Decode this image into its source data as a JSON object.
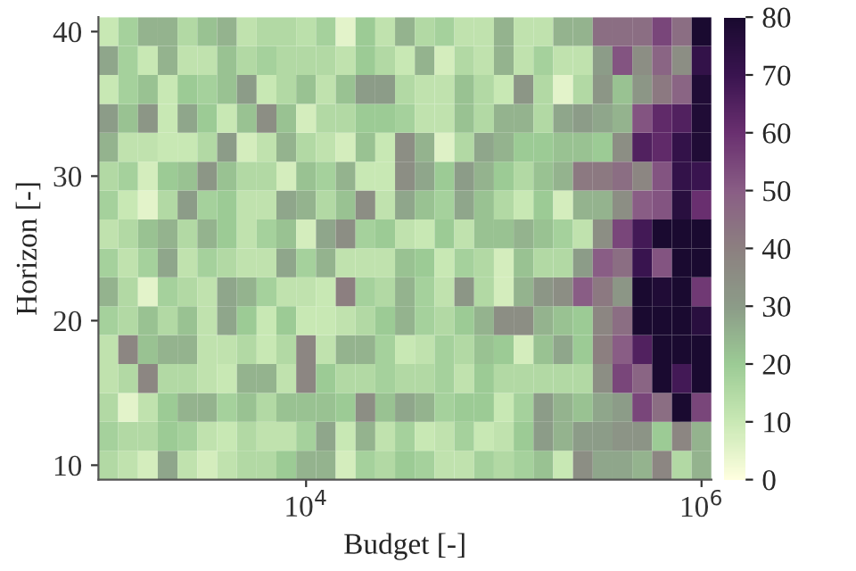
{
  "chart_data": {
    "type": "heatmap",
    "xlabel": "Budget [-]",
    "ylabel": "Horizon [-]",
    "log": "x",
    "x": [
      1000,
      1259,
      1585,
      1995,
      2512,
      3162,
      3981,
      5012,
      6310,
      7943,
      10000,
      12589,
      15849,
      19953,
      25119,
      31623,
      39811,
      50119,
      63096,
      79433,
      100000,
      125893,
      158489,
      199526,
      251189,
      316228,
      398107,
      501187,
      630957,
      794328,
      1000000
    ],
    "y": [
      40,
      38,
      36,
      34,
      32,
      30,
      28,
      26,
      24,
      22,
      20,
      18,
      16,
      14,
      12,
      10
    ],
    "xlim": [
      891,
      1122018
    ],
    "xticks": [
      {
        "value": 10000,
        "label": "10$^{4}$"
      },
      {
        "value": 1000000,
        "label": "10$^{6}$"
      }
    ],
    "ylim": [
      9,
      41
    ],
    "yticks": [
      10,
      20,
      30,
      40
    ],
    "clim": [
      0,
      80
    ],
    "cticks": [
      0,
      10,
      20,
      30,
      40,
      50,
      60,
      70,
      80
    ],
    "cells": [
      [
        10,
        18,
        25,
        25,
        15,
        22,
        25,
        12,
        15,
        15,
        13,
        18,
        5,
        20,
        12,
        25,
        15,
        18,
        12,
        12,
        25,
        12,
        12,
        25,
        25,
        45,
        45,
        45,
        55,
        45,
        80
      ],
      [
        28,
        18,
        10,
        25,
        12,
        12,
        22,
        15,
        18,
        15,
        15,
        15,
        12,
        20,
        15,
        10,
        25,
        8,
        15,
        12,
        25,
        12,
        18,
        12,
        12,
        30,
        52,
        35,
        48,
        35,
        72
      ],
      [
        10,
        18,
        22,
        10,
        20,
        18,
        22,
        30,
        10,
        15,
        22,
        12,
        22,
        30,
        30,
        15,
        12,
        12,
        22,
        15,
        10,
        32,
        15,
        5,
        15,
        32,
        22,
        32,
        42,
        48,
        78
      ],
      [
        30,
        22,
        32,
        10,
        28,
        20,
        10,
        22,
        35,
        22,
        8,
        15,
        15,
        20,
        20,
        18,
        12,
        12,
        22,
        15,
        25,
        25,
        15,
        28,
        30,
        28,
        25,
        52,
        62,
        65,
        78
      ],
      [
        25,
        12,
        12,
        10,
        10,
        15,
        30,
        8,
        12,
        25,
        15,
        12,
        8,
        22,
        10,
        35,
        25,
        6,
        15,
        28,
        25,
        20,
        20,
        22,
        22,
        20,
        35,
        65,
        62,
        72,
        78
      ],
      [
        15,
        18,
        8,
        20,
        22,
        32,
        22,
        15,
        15,
        8,
        22,
        18,
        25,
        10,
        10,
        35,
        28,
        20,
        30,
        25,
        20,
        15,
        22,
        25,
        42,
        42,
        45,
        38,
        52,
        72,
        70
      ],
      [
        18,
        10,
        5,
        15,
        30,
        18,
        20,
        12,
        12,
        28,
        25,
        15,
        22,
        35,
        12,
        28,
        22,
        18,
        28,
        22,
        15,
        10,
        20,
        8,
        25,
        25,
        35,
        50,
        52,
        75,
        60
      ],
      [
        12,
        15,
        22,
        25,
        15,
        25,
        20,
        12,
        18,
        22,
        8,
        28,
        35,
        18,
        20,
        12,
        10,
        20,
        12,
        22,
        22,
        25,
        22,
        18,
        12,
        35,
        55,
        68,
        80,
        80,
        80
      ],
      [
        18,
        12,
        18,
        28,
        12,
        18,
        15,
        12,
        12,
        28,
        18,
        25,
        12,
        12,
        12,
        22,
        20,
        10,
        18,
        15,
        8,
        22,
        15,
        15,
        30,
        50,
        45,
        70,
        52,
        80,
        80
      ],
      [
        25,
        15,
        5,
        18,
        15,
        12,
        28,
        25,
        18,
        12,
        12,
        10,
        40,
        18,
        15,
        25,
        18,
        12,
        32,
        15,
        8,
        25,
        32,
        35,
        50,
        42,
        32,
        80,
        78,
        80,
        58
      ],
      [
        18,
        15,
        22,
        15,
        22,
        12,
        28,
        20,
        10,
        20,
        10,
        10,
        12,
        15,
        20,
        25,
        18,
        15,
        20,
        25,
        35,
        35,
        25,
        22,
        20,
        38,
        45,
        80,
        80,
        80,
        75
      ],
      [
        12,
        38,
        22,
        25,
        25,
        12,
        12,
        15,
        10,
        15,
        38,
        12,
        25,
        25,
        18,
        10,
        12,
        18,
        15,
        22,
        20,
        8,
        22,
        28,
        20,
        40,
        50,
        65,
        80,
        80,
        80
      ],
      [
        12,
        15,
        38,
        15,
        15,
        12,
        10,
        25,
        25,
        12,
        38,
        20,
        15,
        15,
        18,
        15,
        15,
        18,
        12,
        20,
        15,
        15,
        15,
        15,
        15,
        35,
        55,
        48,
        80,
        68,
        80
      ],
      [
        15,
        5,
        12,
        20,
        25,
        25,
        18,
        22,
        15,
        22,
        22,
        22,
        20,
        35,
        22,
        28,
        25,
        18,
        20,
        20,
        10,
        18,
        30,
        25,
        22,
        28,
        30,
        55,
        45,
        80,
        55
      ],
      [
        18,
        15,
        15,
        20,
        18,
        12,
        10,
        15,
        12,
        12,
        18,
        28,
        10,
        25,
        12,
        18,
        10,
        12,
        18,
        10,
        12,
        20,
        30,
        25,
        30,
        30,
        33,
        33,
        20,
        38,
        25
      ],
      [
        15,
        12,
        8,
        28,
        12,
        8,
        12,
        15,
        15,
        20,
        25,
        25,
        8,
        18,
        15,
        20,
        18,
        12,
        12,
        18,
        15,
        18,
        22,
        10,
        35,
        28,
        28,
        25,
        38,
        15,
        25
      ]
    ]
  }
}
